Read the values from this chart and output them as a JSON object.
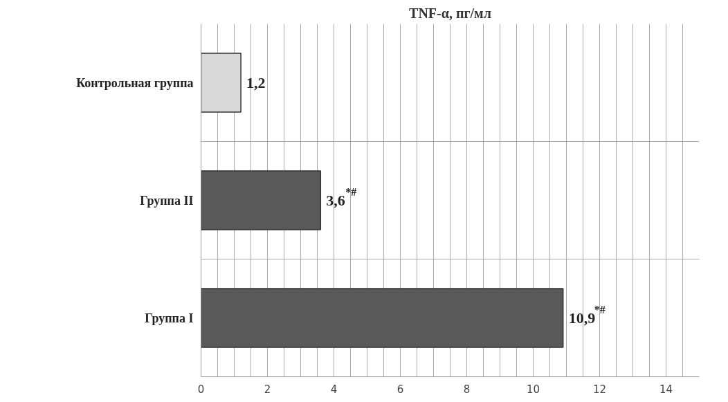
{
  "chart_data": {
    "type": "bar",
    "orientation": "horizontal",
    "title": "TNF-α, пг/мл",
    "categories": [
      "Контрольная группа",
      "Группа II",
      "Группа I"
    ],
    "values": [
      1.2,
      3.6,
      10.9
    ],
    "colors": [
      "#d9d9d9",
      "#595959",
      "#595959"
    ],
    "value_labels": [
      "1,2",
      "3,6$^{*#}$",
      "10,9$^{*#}$"
    ],
    "xlim": [
      0,
      15
    ],
    "xticks": [
      0,
      2,
      4,
      6,
      8,
      10,
      12,
      14
    ],
    "grid": true
  }
}
